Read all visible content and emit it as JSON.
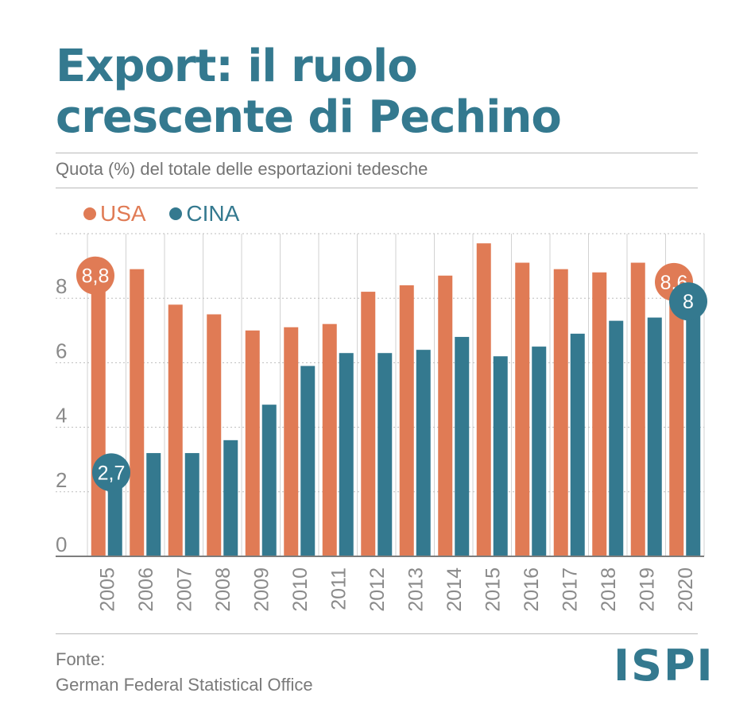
{
  "header": {
    "title_line1": "Export: il ruolo",
    "title_line2": "crescente di Pechino",
    "subtitle": "Quota (%) del totale delle esportazioni tedesche"
  },
  "legend": [
    {
      "label": "USA",
      "color": "#e07b55"
    },
    {
      "label": "CINA",
      "color": "#34798f"
    }
  ],
  "footer": {
    "source_label": "Fonte:",
    "source": "German Federal Statistical Office",
    "logo": "ISPI"
  },
  "chart_data": {
    "type": "bar",
    "categories": [
      "2005",
      "2006",
      "2007",
      "2008",
      "2009",
      "2010",
      "2011",
      "2012",
      "2013",
      "2014",
      "2015",
      "2016",
      "2017",
      "2018",
      "2019",
      "2020"
    ],
    "series": [
      {
        "name": "USA",
        "color": "#e07b55",
        "values": [
          8.8,
          8.9,
          7.8,
          7.5,
          7.0,
          7.1,
          7.2,
          8.2,
          8.4,
          8.7,
          9.7,
          9.1,
          8.9,
          8.8,
          9.1,
          8.6
        ]
      },
      {
        "name": "CINA",
        "color": "#34798f",
        "values": [
          2.7,
          3.2,
          3.2,
          3.6,
          4.7,
          5.9,
          6.3,
          6.3,
          6.4,
          6.8,
          6.2,
          6.5,
          6.9,
          7.3,
          7.4,
          8.0
        ]
      }
    ],
    "y_ticks": [
      0,
      2,
      4,
      6,
      8
    ],
    "ylim": [
      0,
      10
    ],
    "callouts": [
      {
        "series": 0,
        "index": 0,
        "label": "8,8"
      },
      {
        "series": 1,
        "index": 0,
        "label": "2,7"
      },
      {
        "series": 0,
        "index": 15,
        "label": "8,6"
      },
      {
        "series": 1,
        "index": 15,
        "label": "8"
      }
    ],
    "grid": true,
    "legend_position": "top-left"
  }
}
